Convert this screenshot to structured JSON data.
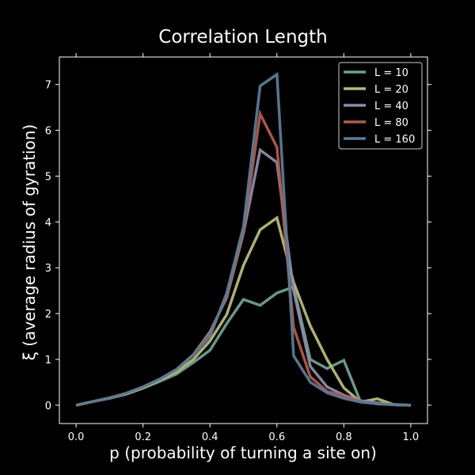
{
  "chart_data": {
    "type": "line",
    "title": "Correlation Length",
    "xlabel": "p (probability of turning a site on)",
    "ylabel": "ξ (average radius of gyration)",
    "xlim": [
      -0.05,
      1.05
    ],
    "ylim": [
      -0.4,
      7.6
    ],
    "xticks": [
      0.0,
      0.2,
      0.4,
      0.6,
      0.8,
      1.0
    ],
    "xtick_labels": [
      "0.0",
      "0.2",
      "0.4",
      "0.6",
      "0.8",
      "1.0"
    ],
    "yticks": [
      0,
      1,
      2,
      3,
      4,
      5,
      6,
      7
    ],
    "ytick_labels": [
      "0",
      "1",
      "2",
      "3",
      "4",
      "5",
      "6",
      "7"
    ],
    "grid": false,
    "legend_position": "top-right",
    "x": [
      0.0,
      0.05,
      0.1,
      0.15,
      0.2,
      0.25,
      0.3,
      0.35,
      0.4,
      0.45,
      0.5,
      0.55,
      0.6,
      0.65,
      0.7,
      0.75,
      0.8,
      0.85,
      0.9,
      0.95,
      1.0
    ],
    "series": [
      {
        "name": "L = 10",
        "color": "#6f9f8f",
        "values": [
          0.0,
          0.08,
          0.15,
          0.24,
          0.37,
          0.52,
          0.68,
          0.93,
          1.2,
          1.78,
          2.31,
          2.18,
          2.45,
          2.58,
          1.0,
          0.8,
          0.98,
          0.07,
          0.05,
          0.02,
          0.0
        ]
      },
      {
        "name": "L = 20",
        "color": "#b8b87a",
        "values": [
          0.0,
          0.08,
          0.16,
          0.25,
          0.38,
          0.55,
          0.73,
          1.0,
          1.4,
          1.98,
          3.05,
          3.83,
          4.09,
          2.68,
          1.73,
          1.0,
          0.38,
          0.07,
          0.14,
          0.01,
          0.0
        ]
      },
      {
        "name": "L = 40",
        "color": "#8e8aa8",
        "values": [
          0.0,
          0.08,
          0.16,
          0.26,
          0.4,
          0.57,
          0.78,
          1.1,
          1.6,
          2.35,
          3.75,
          5.57,
          5.3,
          2.5,
          0.85,
          0.4,
          0.22,
          0.1,
          0.05,
          0.01,
          0.0
        ]
      },
      {
        "name": "L = 80",
        "color": "#b05a4e",
        "values": [
          0.0,
          0.08,
          0.16,
          0.26,
          0.4,
          0.57,
          0.78,
          1.1,
          1.55,
          2.4,
          3.8,
          6.36,
          5.63,
          1.7,
          0.62,
          0.3,
          0.2,
          0.08,
          0.03,
          0.01,
          0.0
        ]
      },
      {
        "name": "L = 160",
        "color": "#5c7a95",
        "values": [
          0.0,
          0.08,
          0.16,
          0.26,
          0.4,
          0.57,
          0.78,
          1.1,
          1.5,
          2.45,
          3.9,
          6.97,
          7.22,
          1.08,
          0.5,
          0.27,
          0.15,
          0.07,
          0.03,
          0.01,
          0.0
        ]
      }
    ]
  }
}
